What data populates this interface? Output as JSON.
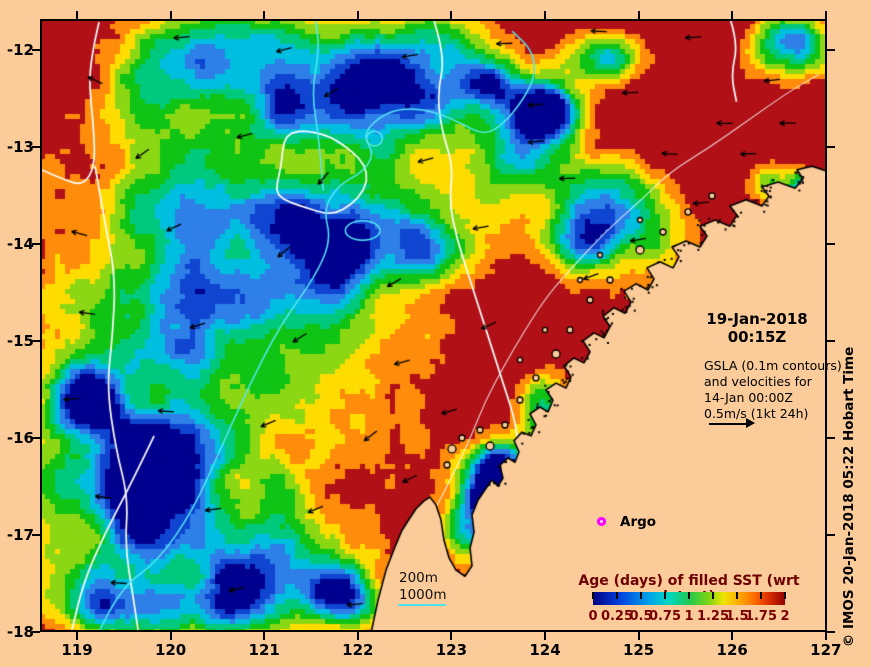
{
  "figure": {
    "background_color": "#FBCB99",
    "credit": "© IMOS 20-Jan-2018 05:22 Hobart Time"
  },
  "axes": {
    "x": {
      "tick_labels": [
        "119",
        "120",
        "121",
        "122",
        "123",
        "124",
        "125",
        "126",
        "127"
      ]
    },
    "y": {
      "tick_labels": [
        "-12",
        "-13",
        "-14",
        "-15",
        "-16",
        "-17",
        "-18"
      ]
    }
  },
  "annotations": {
    "datetime_line1": "19-Jan-2018",
    "datetime_line2": "00:15Z",
    "gsla_lines": [
      "GSLA (0.1m contours)",
      "and velocities for",
      "14-Jan 00:00Z",
      "0.5m/s (1kt 24h)"
    ],
    "argo_label": "Argo",
    "bathy_200m": "200m",
    "bathy_1000m": "1000m"
  },
  "legend": {
    "title": "Age (days) of filled SST (wrt latest)",
    "title_color": "#6E0000",
    "label_color": "#7A0000",
    "tick_labels": [
      "0",
      "0.25",
      "0.5",
      "0.75",
      "1",
      "1.25",
      "1.5",
      "1.75",
      "2"
    ],
    "gradient_stops": [
      [
        "#000080",
        0
      ],
      [
        "#0040E0",
        14
      ],
      [
        "#00A8E8",
        30
      ],
      [
        "#00D8C0",
        40
      ],
      [
        "#20C850",
        50
      ],
      [
        "#7CD414",
        60
      ],
      [
        "#F0E400",
        68
      ],
      [
        "#FFAA00",
        76
      ],
      [
        "#FF6E00",
        84
      ],
      [
        "#E03000",
        91
      ],
      [
        "#900000",
        100
      ]
    ]
  },
  "map": {
    "land_color": "#FBCB99",
    "coast_color": "#000000",
    "gsla_contour_color": "#FFFFFF",
    "bathy_1000m_color": "#55E8F5",
    "bathy_200m_color": "rgba(255,255,255,0.8)",
    "velocity_arrow_color": "#000000",
    "argo_marker_color": "#FF00FF",
    "age_palette": [
      "#00008E",
      "#0F45D0",
      "#2E7FE8",
      "#00BEE0",
      "#00C87D",
      "#0FC414",
      "#8CD714",
      "#FFDC00",
      "#FF8C0A",
      "#B01016",
      "#B01016"
    ]
  },
  "chart_data": {
    "type": "heatmap",
    "title": "Age (days) of filled SST (wrt latest)",
    "value_range": [
      0,
      2
    ],
    "colorbar_ticks": [
      0,
      0.25,
      0.5,
      0.75,
      1,
      1.25,
      1.5,
      1.75,
      2
    ],
    "x_ticks": [
      119,
      120,
      121,
      122,
      123,
      124,
      125,
      126,
      127
    ],
    "y_ticks": [
      -12,
      -13,
      -14,
      -15,
      -16,
      -17,
      -18
    ],
    "overlays": [
      "GSLA 0.1m sea-level contours (white)",
      "geostrophic velocity arrows (black)",
      "200m and 1000m bathymetry lines",
      "Argo float position marker"
    ],
    "valid_time": "19-Jan-2018 00:15Z",
    "gsla_time": "14-Jan 00:00Z"
  }
}
